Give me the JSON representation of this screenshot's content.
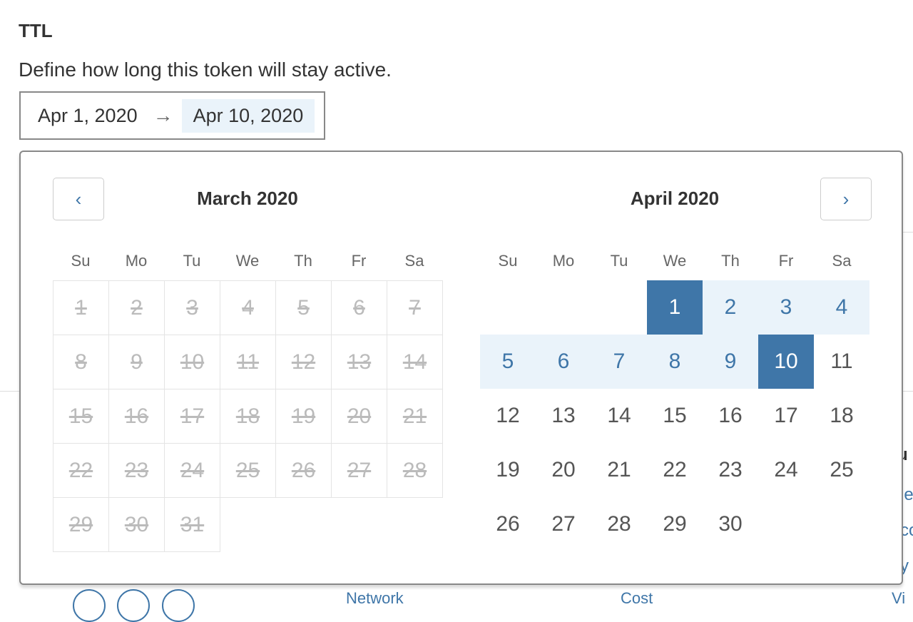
{
  "section": {
    "title": "TTL",
    "description": "Define how long this token will stay active."
  },
  "range": {
    "start": "Apr 1, 2020",
    "arrow": "→",
    "end": "Apr 10, 2020"
  },
  "calendar": {
    "prev_icon": "‹",
    "next_icon": "›",
    "weekdays": [
      "Su",
      "Mo",
      "Tu",
      "We",
      "Th",
      "Fr",
      "Sa"
    ],
    "left": {
      "title": "March 2020",
      "start_offset": 0,
      "days": 31,
      "disabled": true
    },
    "right": {
      "title": "April 2020",
      "start_offset": 3,
      "days": 30,
      "selected": [
        1,
        10
      ],
      "in_range": [
        2,
        3,
        4,
        5,
        6,
        7,
        8,
        9
      ]
    }
  },
  "background": {
    "fragments": [
      "u",
      "le",
      "co",
      "y"
    ],
    "bottom_links": [
      "Network",
      "Cost",
      "Vi"
    ]
  },
  "colors": {
    "accent": "#3f76a8",
    "range_bg": "#eaf3fa"
  }
}
